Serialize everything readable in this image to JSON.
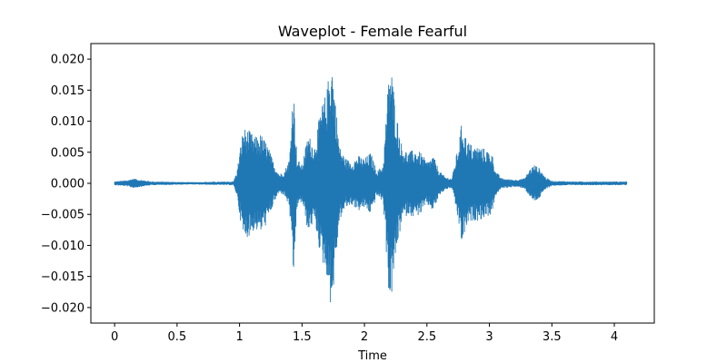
{
  "chart_data": {
    "type": "line",
    "title": "Waveplot - Female Fearful",
    "xlabel": "Time",
    "ylabel": "",
    "xlim": [
      -0.19,
      4.32
    ],
    "ylim": [
      -0.0225,
      0.0225
    ],
    "x_ticks": [
      0,
      0.5,
      1,
      1.5,
      2,
      2.5,
      3,
      3.5,
      4
    ],
    "x_tick_labels": [
      "0",
      "0.5",
      "1",
      "1.5",
      "2",
      "2.5",
      "3",
      "3.5",
      "4"
    ],
    "y_ticks": [
      0.02,
      0.015,
      0.01,
      0.005,
      0,
      -0.005,
      -0.01,
      -0.015,
      -0.02
    ],
    "y_tick_labels": [
      "0.020",
      "0.015",
      "0.010",
      "0.005",
      "0.000",
      "−0.005",
      "−0.010",
      "−0.015",
      "−0.020"
    ],
    "grid": false,
    "series": [
      {
        "color": "#1f77b4",
        "duration": 4.1,
        "envelope": [
          [
            0.0,
            0.0003
          ],
          [
            0.1,
            0.0005
          ],
          [
            0.15,
            0.0008
          ],
          [
            0.2,
            0.0006
          ],
          [
            0.3,
            0.0003
          ],
          [
            0.6,
            0.0002
          ],
          [
            0.95,
            0.0003
          ],
          [
            0.98,
            0.002
          ],
          [
            1.0,
            0.005
          ],
          [
            1.03,
            0.009
          ],
          [
            1.08,
            0.0085
          ],
          [
            1.12,
            0.0075
          ],
          [
            1.17,
            0.008
          ],
          [
            1.22,
            0.0065
          ],
          [
            1.28,
            0.003
          ],
          [
            1.32,
            0.0015
          ],
          [
            1.36,
            0.002
          ],
          [
            1.4,
            0.004
          ],
          [
            1.43,
            0.0165
          ],
          [
            1.46,
            0.004
          ],
          [
            1.5,
            0.003
          ],
          [
            1.55,
            0.008
          ],
          [
            1.6,
            0.006
          ],
          [
            1.65,
            0.012
          ],
          [
            1.7,
            0.015
          ],
          [
            1.72,
            0.019
          ],
          [
            1.74,
            0.02
          ],
          [
            1.77,
            0.013
          ],
          [
            1.8,
            0.006
          ],
          [
            1.85,
            0.004
          ],
          [
            1.9,
            0.0035
          ],
          [
            1.95,
            0.0045
          ],
          [
            2.0,
            0.004
          ],
          [
            2.05,
            0.005
          ],
          [
            2.1,
            0.002
          ],
          [
            2.15,
            0.003
          ],
          [
            2.2,
            0.0195
          ],
          [
            2.22,
            0.018
          ],
          [
            2.25,
            0.012
          ],
          [
            2.3,
            0.006
          ],
          [
            2.35,
            0.005
          ],
          [
            2.4,
            0.0055
          ],
          [
            2.45,
            0.005
          ],
          [
            2.5,
            0.0035
          ],
          [
            2.55,
            0.0045
          ],
          [
            2.6,
            0.002
          ],
          [
            2.65,
            0.001
          ],
          [
            2.7,
            0.0008
          ],
          [
            2.75,
            0.006
          ],
          [
            2.78,
            0.01
          ],
          [
            2.82,
            0.007
          ],
          [
            2.87,
            0.006
          ],
          [
            2.92,
            0.006
          ],
          [
            2.97,
            0.0055
          ],
          [
            3.02,
            0.005
          ],
          [
            3.05,
            0.002
          ],
          [
            3.1,
            0.0008
          ],
          [
            3.2,
            0.0006
          ],
          [
            3.28,
            0.0008
          ],
          [
            3.33,
            0.0025
          ],
          [
            3.36,
            0.003
          ],
          [
            3.4,
            0.0025
          ],
          [
            3.45,
            0.001
          ],
          [
            3.5,
            0.0004
          ],
          [
            3.7,
            0.0003
          ],
          [
            4.1,
            0.0003
          ]
        ]
      }
    ]
  }
}
